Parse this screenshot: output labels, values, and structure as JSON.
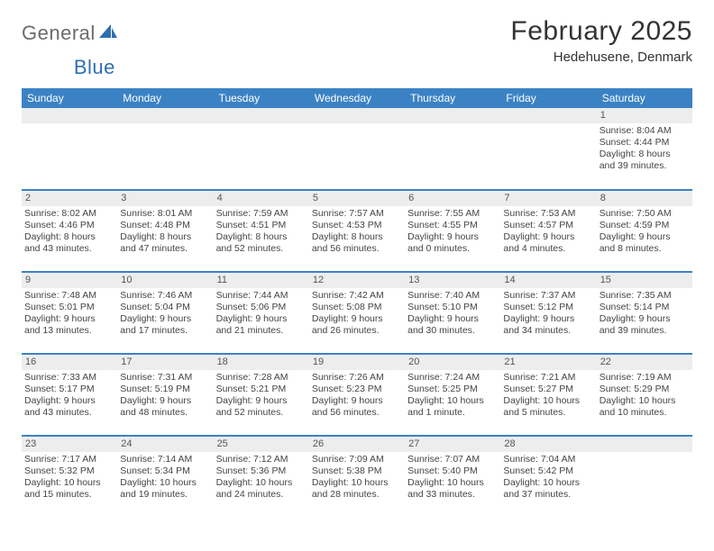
{
  "brand": {
    "part1": "General",
    "part2": "Blue"
  },
  "title": "February 2025",
  "location": "Hedehusene, Denmark",
  "header_color": "#3b82c4",
  "daynum_bg": "#ededed",
  "days_of_week": [
    "Sunday",
    "Monday",
    "Tuesday",
    "Wednesday",
    "Thursday",
    "Friday",
    "Saturday"
  ],
  "weeks": [
    [
      null,
      null,
      null,
      null,
      null,
      null,
      {
        "n": "1",
        "sunrise": "8:04 AM",
        "sunset": "4:44 PM",
        "day_h": 8,
        "day_m": 39
      }
    ],
    [
      {
        "n": "2",
        "sunrise": "8:02 AM",
        "sunset": "4:46 PM",
        "day_h": 8,
        "day_m": 43
      },
      {
        "n": "3",
        "sunrise": "8:01 AM",
        "sunset": "4:48 PM",
        "day_h": 8,
        "day_m": 47
      },
      {
        "n": "4",
        "sunrise": "7:59 AM",
        "sunset": "4:51 PM",
        "day_h": 8,
        "day_m": 52
      },
      {
        "n": "5",
        "sunrise": "7:57 AM",
        "sunset": "4:53 PM",
        "day_h": 8,
        "day_m": 56
      },
      {
        "n": "6",
        "sunrise": "7:55 AM",
        "sunset": "4:55 PM",
        "day_h": 9,
        "day_m": 0
      },
      {
        "n": "7",
        "sunrise": "7:53 AM",
        "sunset": "4:57 PM",
        "day_h": 9,
        "day_m": 4
      },
      {
        "n": "8",
        "sunrise": "7:50 AM",
        "sunset": "4:59 PM",
        "day_h": 9,
        "day_m": 8
      }
    ],
    [
      {
        "n": "9",
        "sunrise": "7:48 AM",
        "sunset": "5:01 PM",
        "day_h": 9,
        "day_m": 13
      },
      {
        "n": "10",
        "sunrise": "7:46 AM",
        "sunset": "5:04 PM",
        "day_h": 9,
        "day_m": 17
      },
      {
        "n": "11",
        "sunrise": "7:44 AM",
        "sunset": "5:06 PM",
        "day_h": 9,
        "day_m": 21
      },
      {
        "n": "12",
        "sunrise": "7:42 AM",
        "sunset": "5:08 PM",
        "day_h": 9,
        "day_m": 26
      },
      {
        "n": "13",
        "sunrise": "7:40 AM",
        "sunset": "5:10 PM",
        "day_h": 9,
        "day_m": 30
      },
      {
        "n": "14",
        "sunrise": "7:37 AM",
        "sunset": "5:12 PM",
        "day_h": 9,
        "day_m": 34
      },
      {
        "n": "15",
        "sunrise": "7:35 AM",
        "sunset": "5:14 PM",
        "day_h": 9,
        "day_m": 39
      }
    ],
    [
      {
        "n": "16",
        "sunrise": "7:33 AM",
        "sunset": "5:17 PM",
        "day_h": 9,
        "day_m": 43
      },
      {
        "n": "17",
        "sunrise": "7:31 AM",
        "sunset": "5:19 PM",
        "day_h": 9,
        "day_m": 48
      },
      {
        "n": "18",
        "sunrise": "7:28 AM",
        "sunset": "5:21 PM",
        "day_h": 9,
        "day_m": 52
      },
      {
        "n": "19",
        "sunrise": "7:26 AM",
        "sunset": "5:23 PM",
        "day_h": 9,
        "day_m": 56
      },
      {
        "n": "20",
        "sunrise": "7:24 AM",
        "sunset": "5:25 PM",
        "day_h": 10,
        "day_m": 1
      },
      {
        "n": "21",
        "sunrise": "7:21 AM",
        "sunset": "5:27 PM",
        "day_h": 10,
        "day_m": 5
      },
      {
        "n": "22",
        "sunrise": "7:19 AM",
        "sunset": "5:29 PM",
        "day_h": 10,
        "day_m": 10
      }
    ],
    [
      {
        "n": "23",
        "sunrise": "7:17 AM",
        "sunset": "5:32 PM",
        "day_h": 10,
        "day_m": 15
      },
      {
        "n": "24",
        "sunrise": "7:14 AM",
        "sunset": "5:34 PM",
        "day_h": 10,
        "day_m": 19
      },
      {
        "n": "25",
        "sunrise": "7:12 AM",
        "sunset": "5:36 PM",
        "day_h": 10,
        "day_m": 24
      },
      {
        "n": "26",
        "sunrise": "7:09 AM",
        "sunset": "5:38 PM",
        "day_h": 10,
        "day_m": 28
      },
      {
        "n": "27",
        "sunrise": "7:07 AM",
        "sunset": "5:40 PM",
        "day_h": 10,
        "day_m": 33
      },
      {
        "n": "28",
        "sunrise": "7:04 AM",
        "sunset": "5:42 PM",
        "day_h": 10,
        "day_m": 37
      },
      null
    ]
  ],
  "labels": {
    "sunrise": "Sunrise:",
    "sunset": "Sunset:",
    "daylight": "Daylight:",
    "hours": "hours",
    "and": "and",
    "minute": "minute",
    "minutes": "minutes"
  }
}
